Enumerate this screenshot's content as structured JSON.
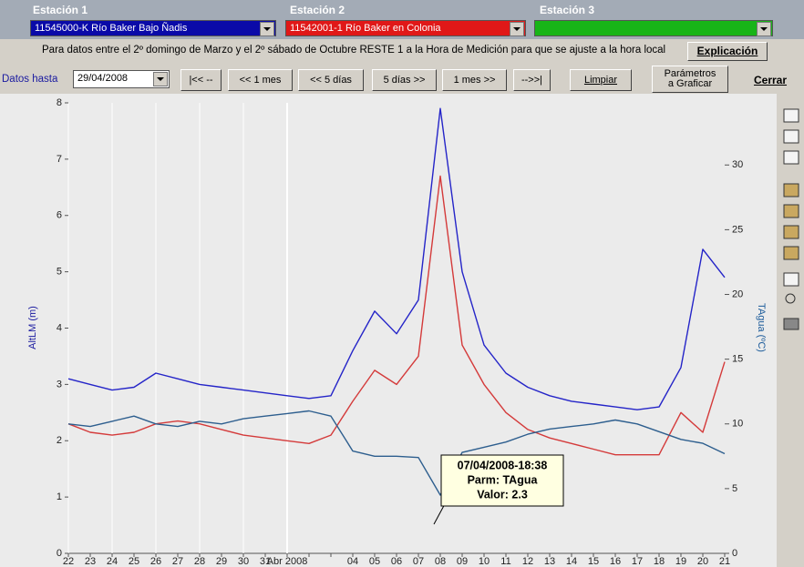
{
  "header": {
    "station_labels": [
      "Estación 1",
      "Estación 2",
      "Estación 3"
    ],
    "stations": [
      "11545000-K  Río Baker Bajo Ñadis",
      "11542001-1  Río Baker en Colonia",
      ""
    ],
    "note": "Para datos entre el 2º domingo de Marzo y el 2º sábado de Octubre RESTE 1 a la Hora de Medición para que se ajuste a la hora local",
    "explain_button": "Explicación"
  },
  "toolbar": {
    "date_label": "Datos hasta",
    "date": "29/04/2008",
    "nav_buttons": [
      "|<< --",
      "<< 1 mes",
      "<< 5 días",
      "5 días >>",
      "1 mes >>",
      "-->>|"
    ],
    "clear_button": "Limpiar",
    "params_button": "Parámetros a Graficar",
    "close_button": "Cerrar"
  },
  "chart_data": {
    "type": "line",
    "y_label": "AltLM (m)",
    "y2_label": "TAgua (ºC)",
    "categories": [
      "22",
      "23",
      "24",
      "25",
      "26",
      "27",
      "28",
      "29",
      "30",
      "31",
      "Abr 2008",
      null,
      null,
      "04",
      "05",
      "06",
      "07",
      "08",
      "09",
      "10",
      "11",
      "12",
      "13",
      "14",
      "15",
      "16",
      "17",
      "18",
      "19",
      "20",
      "21"
    ],
    "ylim": [
      0,
      8
    ],
    "yticks": [
      0,
      1,
      2,
      3,
      4,
      5,
      6,
      7,
      8
    ],
    "y2lim": [
      0,
      34.8
    ],
    "y2ticks": [
      0,
      5,
      10,
      15,
      20,
      25,
      30
    ],
    "grid": true,
    "series": [
      {
        "color": "#2424c8",
        "values": [
          3.1,
          3.0,
          2.9,
          2.95,
          3.2,
          3.1,
          3.0,
          2.95,
          2.9,
          2.85,
          2.8,
          2.75,
          2.8,
          3.6,
          4.3,
          3.9,
          4.5,
          7.9,
          5.0,
          3.7,
          3.2,
          2.95,
          2.8,
          2.7,
          2.65,
          2.6,
          2.55,
          2.6,
          3.3,
          5.4,
          4.9
        ]
      },
      {
        "color": "#d43a3a",
        "values": [
          2.3,
          2.15,
          2.1,
          2.15,
          2.3,
          2.35,
          2.3,
          2.2,
          2.1,
          2.05,
          2.0,
          1.95,
          2.1,
          2.7,
          3.25,
          3.0,
          3.5,
          6.7,
          3.7,
          3.0,
          2.5,
          2.2,
          2.05,
          1.95,
          1.85,
          1.75,
          1.75,
          1.75,
          2.5,
          2.15,
          3.4
        ]
      },
      {
        "color": "#2d5e8e",
        "axis": "y2",
        "values": [
          10.0,
          9.8,
          10.2,
          10.6,
          10.0,
          9.8,
          10.2,
          10.0,
          10.4,
          10.6,
          10.8,
          11.0,
          10.6,
          7.9,
          7.5,
          7.5,
          7.4,
          4.5,
          7.8,
          8.2,
          8.6,
          9.2,
          9.6,
          9.8,
          10.0,
          10.3,
          10.0,
          9.4,
          8.8,
          8.5,
          7.7
        ]
      }
    ],
    "tooltip": [
      "07/04/2008-18:38",
      "Parm: TAgua",
      "Valor: 2.3"
    ]
  }
}
